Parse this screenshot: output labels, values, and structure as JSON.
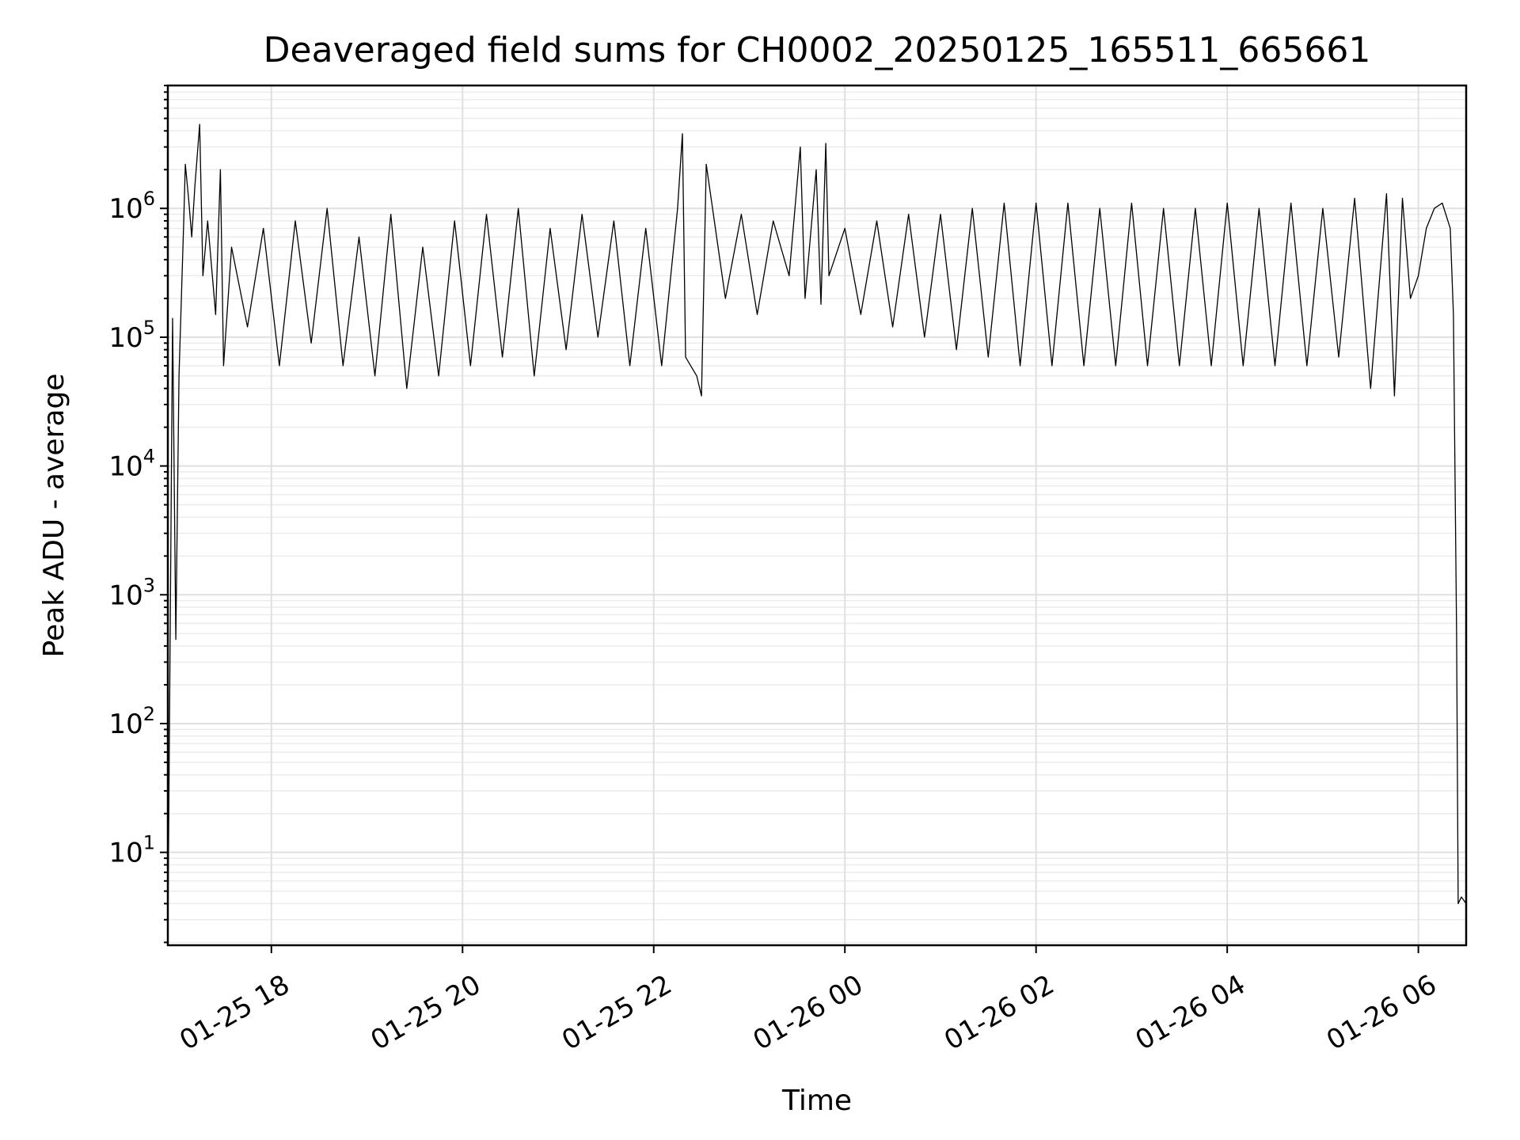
{
  "chart_data": {
    "type": "line",
    "title": "Deaveraged field sums for CH0002_20250125_165511_665661",
    "xlabel": "Time",
    "ylabel": "Peak ADU - average",
    "yscale": "log",
    "grid": "major and minor",
    "x_tick_labels": [
      "01-25 18",
      "01-25 20",
      "01-25 22",
      "01-26 00",
      "01-26 02",
      "01-26 04",
      "01-26 06"
    ],
    "x_tick_times": [
      "2025-01-25 18:00",
      "2025-01-25 20:00",
      "2025-01-25 22:00",
      "2025-01-26 00:00",
      "2025-01-26 02:00",
      "2025-01-26 04:00",
      "2025-01-26 06:00"
    ],
    "xlim": [
      "2025-01-25 16:55",
      "2025-01-26 06:30"
    ],
    "y_ticks": [
      10,
      100,
      1000,
      10000,
      100000,
      1000000
    ],
    "y_tick_labels": [
      {
        "base": "10",
        "exp": "1"
      },
      {
        "base": "10",
        "exp": "2"
      },
      {
        "base": "10",
        "exp": "3"
      },
      {
        "base": "10",
        "exp": "4"
      },
      {
        "base": "10",
        "exp": "5"
      },
      {
        "base": "10",
        "exp": "6"
      }
    ],
    "ylim": [
      1.9,
      9000000
    ],
    "series": [
      {
        "color": "#000000",
        "points": [
          [
            "2025-01-25 16:55",
            2
          ],
          [
            "2025-01-25 16:58",
            140000
          ],
          [
            "2025-01-25 17:00",
            450
          ],
          [
            "2025-01-25 17:02",
            50000
          ],
          [
            "2025-01-25 17:05",
            800000
          ],
          [
            "2025-01-25 17:06",
            2200000
          ],
          [
            "2025-01-25 17:08",
            1200000
          ],
          [
            "2025-01-25 17:10",
            600000
          ],
          [
            "2025-01-25 17:12",
            1500000
          ],
          [
            "2025-01-25 17:15",
            4500000
          ],
          [
            "2025-01-25 17:17",
            300000
          ],
          [
            "2025-01-25 17:20",
            800000
          ],
          [
            "2025-01-25 17:25",
            150000
          ],
          [
            "2025-01-25 17:28",
            2000000
          ],
          [
            "2025-01-25 17:30",
            60000
          ],
          [
            "2025-01-25 17:35",
            500000
          ],
          [
            "2025-01-25 17:45",
            120000
          ],
          [
            "2025-01-25 17:55",
            700000
          ],
          [
            "2025-01-25 18:05",
            60000
          ],
          [
            "2025-01-25 18:15",
            800000
          ],
          [
            "2025-01-25 18:25",
            90000
          ],
          [
            "2025-01-25 18:35",
            1000000
          ],
          [
            "2025-01-25 18:45",
            60000
          ],
          [
            "2025-01-25 18:55",
            600000
          ],
          [
            "2025-01-25 19:05",
            50000
          ],
          [
            "2025-01-25 19:15",
            900000
          ],
          [
            "2025-01-25 19:25",
            40000
          ],
          [
            "2025-01-25 19:35",
            500000
          ],
          [
            "2025-01-25 19:45",
            50000
          ],
          [
            "2025-01-25 19:55",
            800000
          ],
          [
            "2025-01-25 20:05",
            60000
          ],
          [
            "2025-01-25 20:15",
            900000
          ],
          [
            "2025-01-25 20:25",
            70000
          ],
          [
            "2025-01-25 20:35",
            1000000
          ],
          [
            "2025-01-25 20:45",
            50000
          ],
          [
            "2025-01-25 20:55",
            700000
          ],
          [
            "2025-01-25 21:05",
            80000
          ],
          [
            "2025-01-25 21:15",
            900000
          ],
          [
            "2025-01-25 21:25",
            100000
          ],
          [
            "2025-01-25 21:35",
            800000
          ],
          [
            "2025-01-25 21:45",
            60000
          ],
          [
            "2025-01-25 21:55",
            700000
          ],
          [
            "2025-01-25 22:05",
            60000
          ],
          [
            "2025-01-25 22:15",
            1000000
          ],
          [
            "2025-01-25 22:18",
            3800000
          ],
          [
            "2025-01-25 22:20",
            70000
          ],
          [
            "2025-01-25 22:27",
            50000
          ],
          [
            "2025-01-25 22:30",
            35000
          ],
          [
            "2025-01-25 22:33",
            2200000
          ],
          [
            "2025-01-25 22:45",
            200000
          ],
          [
            "2025-01-25 22:55",
            900000
          ],
          [
            "2025-01-25 23:05",
            150000
          ],
          [
            "2025-01-25 23:15",
            800000
          ],
          [
            "2025-01-25 23:25",
            300000
          ],
          [
            "2025-01-25 23:32",
            3000000
          ],
          [
            "2025-01-25 23:35",
            200000
          ],
          [
            "2025-01-25 23:42",
            2000000
          ],
          [
            "2025-01-25 23:45",
            180000
          ],
          [
            "2025-01-25 23:48",
            3200000
          ],
          [
            "2025-01-25 23:50",
            300000
          ],
          [
            "2025-01-26 00:00",
            700000
          ],
          [
            "2025-01-26 00:10",
            150000
          ],
          [
            "2025-01-26 00:20",
            800000
          ],
          [
            "2025-01-26 00:30",
            120000
          ],
          [
            "2025-01-26 00:40",
            900000
          ],
          [
            "2025-01-26 00:50",
            100000
          ],
          [
            "2025-01-26 01:00",
            900000
          ],
          [
            "2025-01-26 01:10",
            80000
          ],
          [
            "2025-01-26 01:20",
            1000000
          ],
          [
            "2025-01-26 01:30",
            70000
          ],
          [
            "2025-01-26 01:40",
            1100000
          ],
          [
            "2025-01-26 01:50",
            60000
          ],
          [
            "2025-01-26 02:00",
            1100000
          ],
          [
            "2025-01-26 02:10",
            60000
          ],
          [
            "2025-01-26 02:20",
            1100000
          ],
          [
            "2025-01-26 02:30",
            60000
          ],
          [
            "2025-01-26 02:40",
            1000000
          ],
          [
            "2025-01-26 02:50",
            60000
          ],
          [
            "2025-01-26 03:00",
            1100000
          ],
          [
            "2025-01-26 03:10",
            60000
          ],
          [
            "2025-01-26 03:20",
            1000000
          ],
          [
            "2025-01-26 03:30",
            60000
          ],
          [
            "2025-01-26 03:40",
            1000000
          ],
          [
            "2025-01-26 03:50",
            60000
          ],
          [
            "2025-01-26 04:00",
            1100000
          ],
          [
            "2025-01-26 04:10",
            60000
          ],
          [
            "2025-01-26 04:20",
            1000000
          ],
          [
            "2025-01-26 04:30",
            60000
          ],
          [
            "2025-01-26 04:40",
            1100000
          ],
          [
            "2025-01-26 04:50",
            60000
          ],
          [
            "2025-01-26 05:00",
            1000000
          ],
          [
            "2025-01-26 05:10",
            70000
          ],
          [
            "2025-01-26 05:20",
            1200000
          ],
          [
            "2025-01-26 05:30",
            40000
          ],
          [
            "2025-01-26 05:40",
            1300000
          ],
          [
            "2025-01-26 05:45",
            35000
          ],
          [
            "2025-01-26 05:50",
            1200000
          ],
          [
            "2025-01-26 05:55",
            200000
          ],
          [
            "2025-01-26 06:00",
            300000
          ],
          [
            "2025-01-26 06:05",
            700000
          ],
          [
            "2025-01-26 06:10",
            1000000
          ],
          [
            "2025-01-26 06:15",
            1100000
          ],
          [
            "2025-01-26 06:20",
            700000
          ],
          [
            "2025-01-26 06:22",
            150000
          ],
          [
            "2025-01-26 06:24",
            500
          ],
          [
            "2025-01-26 06:25",
            4
          ],
          [
            "2025-01-26 06:27",
            4.5
          ],
          [
            "2025-01-26 06:30",
            4
          ]
        ]
      }
    ]
  }
}
